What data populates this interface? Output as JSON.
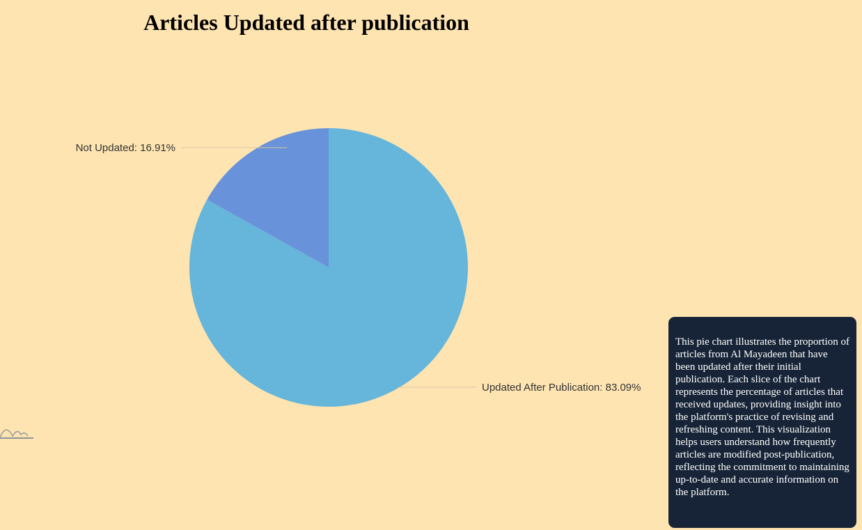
{
  "title": "Articles Updated after publication",
  "description": "This pie chart illustrates the proportion of articles from Al Mayadeen that have been updated after their initial publication. Each slice of the chart represents the percentage of articles that received updates, providing insight into the platform's practice of revising and refreshing content. This visualization helps users understand how frequently articles are modified post-publication, reflecting the commitment to maintaining up-to-date and accurate information on the platform.",
  "colors": {
    "background": "#fee4b1",
    "tooltip_bg": "#172437"
  },
  "chart_data": {
    "type": "pie",
    "title": "Articles Updated after publication",
    "slices": [
      {
        "label": "Not Updated",
        "value": 16.91,
        "display": "Not Updated: 16.91%",
        "color": "#6892da"
      },
      {
        "label": "Updated After Publication",
        "value": 83.09,
        "display": "Updated After Publication: 83.09%",
        "color": "#66b5db"
      }
    ],
    "legend": "none"
  }
}
